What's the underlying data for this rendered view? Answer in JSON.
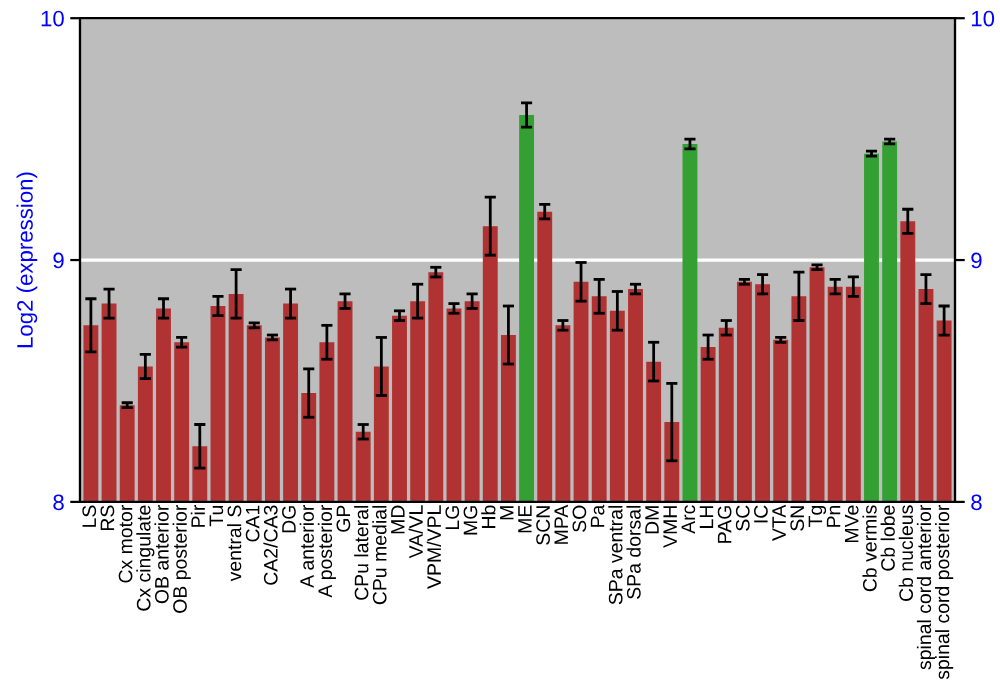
{
  "chart_data": {
    "type": "bar",
    "ylabel": "Log2 (expression)",
    "categories": [
      "LS",
      "RS",
      "Cx motor",
      "Cx cingulate",
      "OB anterior",
      "OB posterior",
      "Pir",
      "Tu",
      "ventral S",
      "CA1",
      "CA2/CA3",
      "DG",
      "A anterior",
      "A posterior",
      "GP",
      "CPu lateral",
      "CPu medial",
      "MD",
      "VA/VL",
      "VPM/VPL",
      "LG",
      "MG",
      "Hb",
      "M",
      "ME",
      "SCN",
      "MPA",
      "SO",
      "Pa",
      "SPa ventral",
      "SPa dorsal",
      "DM",
      "VMH",
      "Arc",
      "LH",
      "PAG",
      "SC",
      "IC",
      "VTA",
      "SN",
      "Tg",
      "Pn",
      "MVe",
      "Cb vermis",
      "Cb lobe",
      "Cb nucleus",
      "spinal cord anterior",
      "spinal cord posterior"
    ],
    "values": [
      8.73,
      8.82,
      8.4,
      8.56,
      8.8,
      8.66,
      8.23,
      8.81,
      8.86,
      8.73,
      8.68,
      8.82,
      8.45,
      8.66,
      8.83,
      8.29,
      8.56,
      8.77,
      8.83,
      8.95,
      8.8,
      8.83,
      9.14,
      8.69,
      9.6,
      9.2,
      8.73,
      8.91,
      8.85,
      8.79,
      8.88,
      8.58,
      8.33,
      9.48,
      8.64,
      8.72,
      8.91,
      8.9,
      8.67,
      8.85,
      8.97,
      8.89,
      8.89,
      9.44,
      9.49,
      9.16,
      8.88,
      8.75
    ],
    "errors": [
      0.11,
      0.06,
      0.01,
      0.05,
      0.04,
      0.02,
      0.09,
      0.04,
      0.1,
      0.01,
      0.01,
      0.06,
      0.1,
      0.07,
      0.03,
      0.03,
      0.12,
      0.02,
      0.07,
      0.02,
      0.02,
      0.03,
      0.12,
      0.12,
      0.05,
      0.03,
      0.02,
      0.08,
      0.07,
      0.08,
      0.02,
      0.08,
      0.16,
      0.02,
      0.05,
      0.03,
      0.01,
      0.04,
      0.01,
      0.1,
      0.01,
      0.03,
      0.04,
      0.01,
      0.01,
      0.05,
      0.06,
      0.06
    ],
    "colors": [
      "#b03232",
      "#b03232",
      "#b03232",
      "#b03232",
      "#b03232",
      "#b03232",
      "#b03232",
      "#b03232",
      "#b03232",
      "#b03232",
      "#b03232",
      "#b03232",
      "#b03232",
      "#b03232",
      "#b03232",
      "#b03232",
      "#b03232",
      "#b03232",
      "#b03232",
      "#b03232",
      "#b03232",
      "#b03232",
      "#b03232",
      "#b03232",
      "#34a034",
      "#b03232",
      "#b03232",
      "#b03232",
      "#b03232",
      "#b03232",
      "#b03232",
      "#b03232",
      "#b03232",
      "#34a034",
      "#b03232",
      "#b03232",
      "#b03232",
      "#b03232",
      "#b03232",
      "#b03232",
      "#b03232",
      "#b03232",
      "#b03232",
      "#34a034",
      "#34a034",
      "#b03232",
      "#b03232",
      "#b03232"
    ],
    "ylim": [
      8,
      10
    ],
    "yticks": [
      8,
      9,
      10
    ],
    "y2lim": [
      8,
      10
    ],
    "y2ticks": [
      8,
      9,
      10
    ],
    "grid": "y"
  }
}
